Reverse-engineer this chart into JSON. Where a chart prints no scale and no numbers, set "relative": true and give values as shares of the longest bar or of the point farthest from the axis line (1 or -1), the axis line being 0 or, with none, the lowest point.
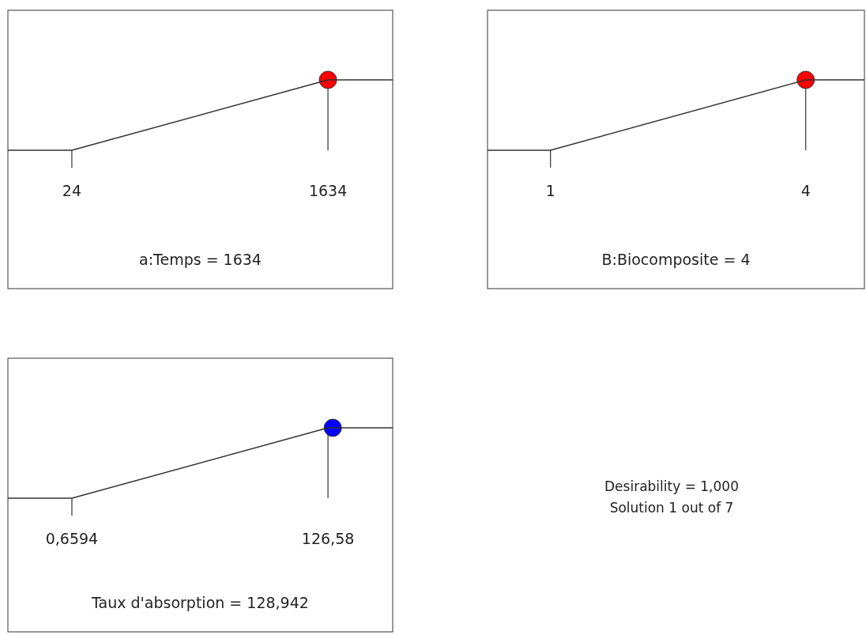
{
  "chart_data": [
    {
      "type": "line",
      "relative": true,
      "xlabel": "a:Temps = 1634",
      "xlim": [
        -378,
        2041
      ],
      "xticks": [
        24,
        1634
      ],
      "tick_labels": "x",
      "series": [
        {
          "type": "line",
          "color": "#333333",
          "x": [
            -378,
            24,
            1634,
            2041
          ],
          "values": [
            0,
            0,
            1,
            1
          ]
        },
        {
          "type": "scatter",
          "color": "#ff0000",
          "marker": "circle",
          "x": [
            1634
          ],
          "values": [
            1
          ]
        }
      ]
    },
    {
      "type": "line",
      "relative": true,
      "xlabel": "B:Biocomposite = 4",
      "xlim": [
        0.26,
        4.69
      ],
      "xticks": [
        1,
        4
      ],
      "tick_labels": "x",
      "series": [
        {
          "type": "line",
          "color": "#333333",
          "x": [
            0.26,
            1,
            4,
            4.69
          ],
          "values": [
            0,
            0,
            1,
            1
          ]
        },
        {
          "type": "scatter",
          "color": "#ff0000",
          "marker": "circle",
          "x": [
            4
          ],
          "values": [
            1
          ]
        }
      ]
    },
    {
      "type": "line",
      "relative": true,
      "xlabel": "Taux d'absorption = 128,942",
      "xlim": [
        -30.8,
        158.4
      ],
      "xticks": [
        {
          "value": 0.6594,
          "label": "0,6594"
        },
        {
          "value": 126.58,
          "label": "126,58"
        }
      ],
      "tick_labels": "x",
      "series": [
        {
          "type": "line",
          "color": "#333333",
          "x": [
            -30.8,
            0.6594,
            126.58,
            158.4
          ],
          "values": [
            0,
            0,
            1,
            1
          ]
        },
        {
          "type": "scatter",
          "color": "#0000ff",
          "marker": "circle",
          "x": [
            128.942
          ],
          "values": [
            1
          ]
        }
      ]
    },
    {
      "type": "other",
      "annotations": [
        "Desirability = 1,000",
        "Solution 1 out of 7"
      ]
    }
  ]
}
